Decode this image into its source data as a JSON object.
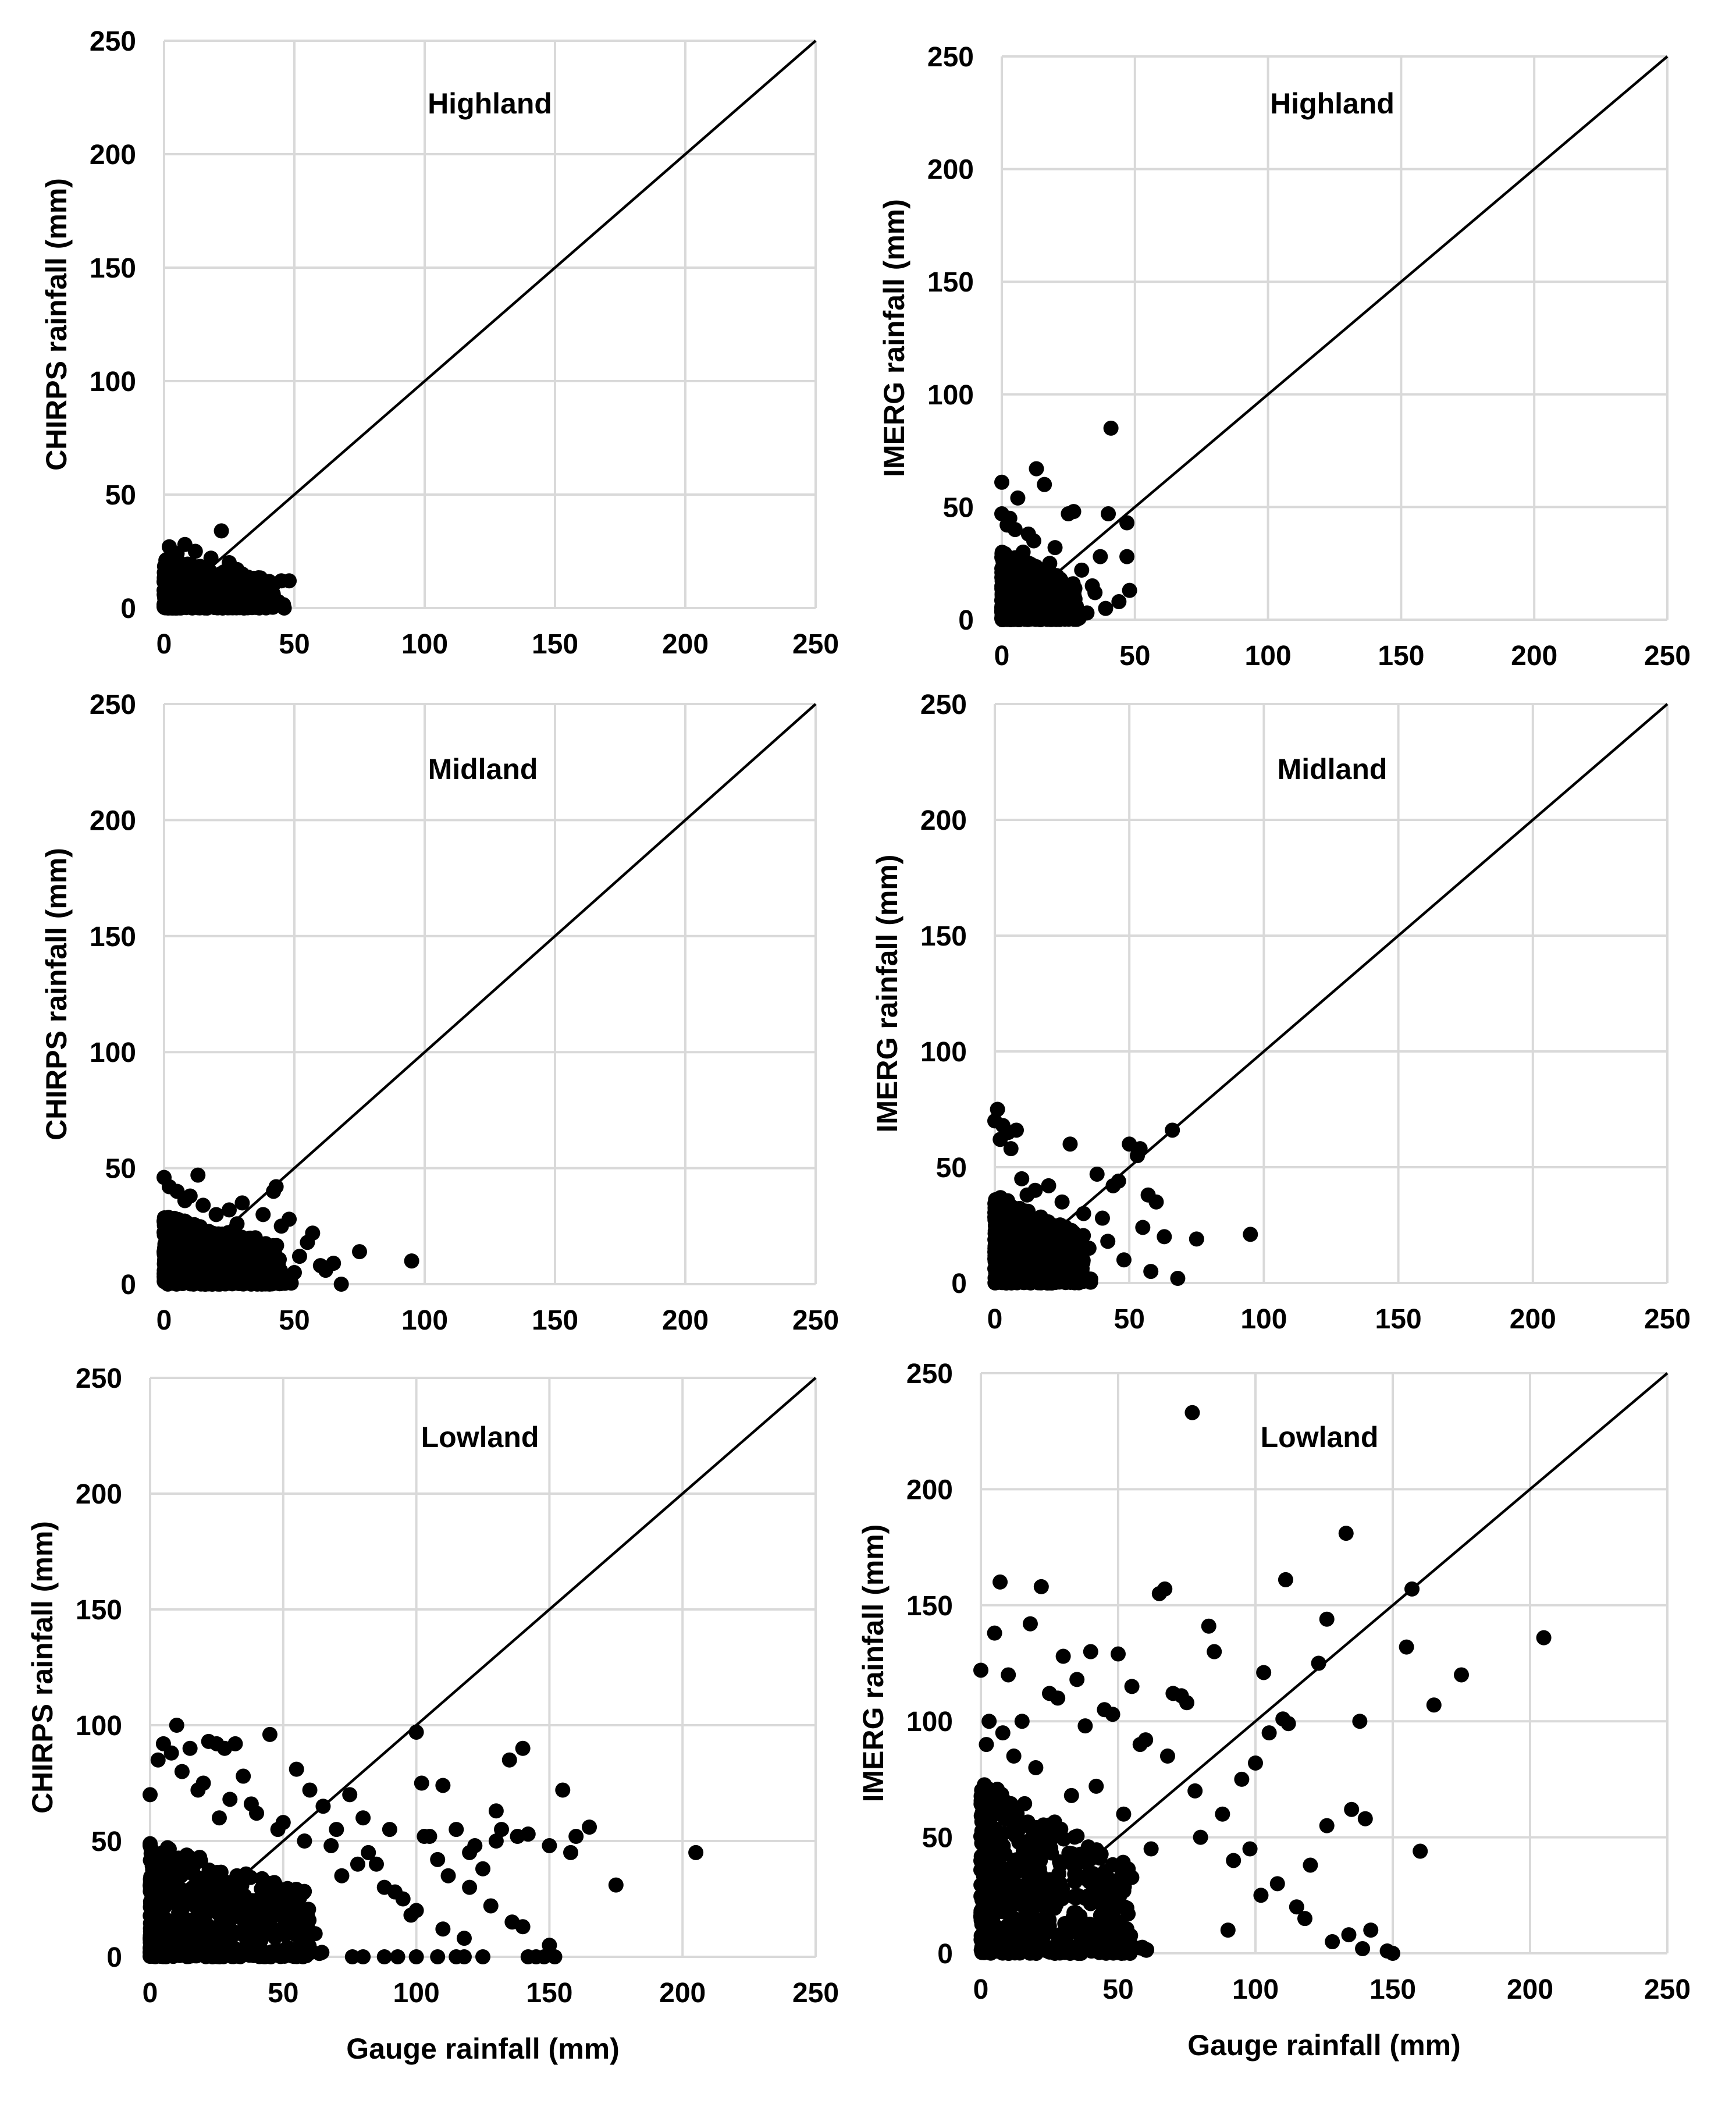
{
  "chart_data": [
    {
      "id": "chirps-highland",
      "type": "scatter",
      "title": "Highland",
      "xlabel": "",
      "ylabel": "CHIRPS rainfall (mm)",
      "xlim": [
        0,
        250
      ],
      "ylim": [
        0,
        250
      ],
      "xticks": [
        "0",
        "50",
        "100",
        "150",
        "200",
        "250"
      ],
      "yticks": [
        "0",
        "50",
        "100",
        "150",
        "200",
        "250"
      ],
      "reference_line": "1:1",
      "series": [
        {
          "name": "points",
          "x": [
            22,
            8,
            5,
            2,
            12,
            18,
            25,
            30,
            35,
            40,
            45,
            48,
            10,
            15,
            20,
            4,
            6,
            42,
            38,
            28
          ],
          "y": [
            34,
            28,
            24,
            27,
            25,
            22,
            20,
            15,
            12,
            10,
            12,
            12,
            18,
            14,
            8,
            5,
            12,
            4,
            6,
            17
          ]
        }
      ],
      "cluster": {
        "xmax": 42,
        "ymax": 22
      }
    },
    {
      "id": "imerg-highland",
      "type": "scatter",
      "title": "Highland",
      "xlabel": "",
      "ylabel": "IMERG rainfall (mm)",
      "xlim": [
        0,
        250
      ],
      "ylim": [
        0,
        250
      ],
      "xticks": [
        "0",
        "50",
        "100",
        "150",
        "200",
        "250"
      ],
      "yticks": [
        "0",
        "50",
        "100",
        "150",
        "200",
        "250"
      ],
      "reference_line": "1:1",
      "series": [
        {
          "name": "points",
          "x": [
            41,
            13,
            0,
            16,
            0,
            6,
            27,
            25,
            47,
            40,
            47,
            48,
            37,
            34,
            39,
            2,
            5,
            10,
            20,
            30,
            8,
            12,
            18,
            22,
            35,
            44,
            15,
            3,
            28,
            32
          ],
          "y": [
            85,
            67,
            61,
            60,
            47,
            54,
            48,
            47,
            43,
            47,
            28,
            13,
            28,
            15,
            5,
            42,
            40,
            38,
            32,
            22,
            30,
            35,
            25,
            18,
            12,
            8,
            20,
            45,
            6,
            3
          ]
        }
      ],
      "cluster": {
        "xmax": 28,
        "ymax": 30
      }
    },
    {
      "id": "chirps-midland",
      "type": "scatter",
      "title": "Midland",
      "xlabel": "",
      "ylabel": "CHIRPS rainfall (mm)",
      "xlim": [
        0,
        250
      ],
      "ylim": [
        0,
        250
      ],
      "xticks": [
        "0",
        "50",
        "100",
        "150",
        "200",
        "250"
      ],
      "yticks": [
        "0",
        "50",
        "100",
        "150",
        "200",
        "250"
      ],
      "reference_line": "1:1",
      "series": [
        {
          "name": "points",
          "x": [
            0,
            13,
            43,
            42,
            75,
            95,
            68,
            60,
            57,
            55,
            48,
            52,
            45,
            38,
            30,
            25,
            20,
            10,
            5,
            2,
            35,
            40,
            50,
            62,
            65,
            28,
            15,
            8
          ],
          "y": [
            46,
            47,
            42,
            40,
            14,
            10,
            0,
            8,
            22,
            18,
            28,
            12,
            25,
            30,
            35,
            32,
            30,
            38,
            40,
            42,
            20,
            15,
            5,
            6,
            9,
            26,
            34,
            36
          ]
        }
      ],
      "cluster": {
        "xmax": 45,
        "ymax": 30
      }
    },
    {
      "id": "imerg-midland",
      "type": "scatter",
      "title": "Midland",
      "xlabel": "",
      "ylabel": "IMERG rainfall (mm)",
      "xlim": [
        0,
        250
      ],
      "ylim": [
        0,
        250
      ],
      "xticks": [
        "0",
        "50",
        "100",
        "150",
        "200",
        "250"
      ],
      "yticks": [
        "0",
        "50",
        "100",
        "150",
        "200",
        "250"
      ],
      "reference_line": "1:1",
      "series": [
        {
          "name": "points",
          "x": [
            1,
            0,
            3,
            5,
            8,
            2,
            6,
            28,
            54,
            50,
            53,
            57,
            46,
            38,
            60,
            55,
            63,
            66,
            75,
            95,
            68,
            33,
            40,
            44,
            48,
            58,
            25,
            15,
            20,
            12,
            10,
            35,
            42
          ],
          "y": [
            75,
            70,
            68,
            65,
            66,
            62,
            58,
            60,
            58,
            60,
            55,
            38,
            44,
            47,
            35,
            24,
            20,
            66,
            19,
            21,
            2,
            30,
            28,
            42,
            10,
            5,
            35,
            40,
            42,
            38,
            45,
            15,
            18
          ]
        }
      ],
      "cluster": {
        "xmax": 33,
        "ymax": 38
      }
    },
    {
      "id": "chirps-lowland",
      "type": "scatter",
      "title": "Lowland",
      "xlabel": "Gauge rainfall (mm)",
      "ylabel": "CHIRPS rainfall (mm)",
      "xlim": [
        0,
        250
      ],
      "ylim": [
        0,
        250
      ],
      "xticks": [
        "0",
        "50",
        "100",
        "150",
        "200",
        "250"
      ],
      "yticks": [
        "0",
        "50",
        "100",
        "150",
        "200",
        "250"
      ],
      "reference_line": "1:1",
      "series": [
        {
          "name": "points",
          "x": [
            10,
            5,
            8,
            3,
            0,
            15,
            22,
            25,
            28,
            32,
            35,
            45,
            55,
            60,
            75,
            90,
            100,
            102,
            103,
            110,
            115,
            120,
            125,
            130,
            135,
            138,
            140,
            142,
            150,
            155,
            158,
            160,
            165,
            175,
            205,
            140,
            130,
            120,
            110,
            100,
            95,
            85,
            80,
            70,
            65,
            50,
            40,
            30,
            20,
            12,
            18,
            26,
            38,
            48,
            58,
            68,
            72,
            78,
            82,
            88,
            92,
            98,
            105,
            108,
            112,
            118,
            122,
            128,
            132,
            136,
            148,
            152,
            145,
            118,
            115,
            108,
            100,
            93,
            88,
            80,
            76,
            142,
            125,
            150,
            62,
            43,
            36,
            24,
            14
          ],
          "y": [
            100,
            92,
            88,
            85,
            70,
            90,
            93,
            92,
            90,
            92,
            78,
            96,
            81,
            72,
            70,
            55,
            97,
            75,
            52,
            74,
            55,
            30,
            38,
            63,
            85,
            52,
            90,
            53,
            48,
            72,
            45,
            52,
            56,
            31,
            45,
            13,
            50,
            45,
            12,
            20,
            25,
            40,
            60,
            55,
            65,
            58,
            62,
            68,
            75,
            80,
            72,
            60,
            66,
            55,
            50,
            48,
            35,
            40,
            45,
            30,
            28,
            18,
            52,
            42,
            35,
            8,
            48,
            22,
            55,
            15,
            0,
            0,
            0,
            0,
            0,
            0,
            0,
            0,
            0,
            0,
            0,
            0,
            0,
            5,
            10,
            20,
            15,
            30,
            25
          ]
        }
      ],
      "cluster": {
        "xmax": 60,
        "ymax": 50
      }
    },
    {
      "id": "imerg-lowland",
      "type": "scatter",
      "title": "Lowland",
      "xlabel": "Gauge rainfall (mm)",
      "ylabel": "IMERG rainfall (mm)",
      "xlim": [
        0,
        250
      ],
      "ylim": [
        0,
        250
      ],
      "xticks": [
        "0",
        "50",
        "100",
        "150",
        "200",
        "250"
      ],
      "yticks": [
        "0",
        "50",
        "100",
        "150",
        "200",
        "250"
      ],
      "reference_line": "1:1",
      "series": [
        {
          "name": "points",
          "x": [
            77,
            133,
            111,
            7,
            22,
            0,
            5,
            18,
            30,
            40,
            50,
            65,
            67,
            73,
            85,
            83,
            103,
            110,
            123,
            126,
            155,
            157,
            205,
            175,
            165,
            138,
            160,
            140,
            135,
            126,
            112,
            105,
            100,
            95,
            88,
            75,
            70,
            60,
            55,
            45,
            35,
            25,
            15,
            10,
            8,
            3,
            2,
            20,
            28,
            38,
            48,
            58,
            68,
            78,
            92,
            98,
            108,
            115,
            118,
            128,
            134,
            139,
            148,
            150,
            142,
            120,
            102,
            90,
            80,
            62,
            52,
            42,
            33,
            12
          ],
          "y": [
            233,
            181,
            161,
            160,
            158,
            122,
            138,
            142,
            128,
            130,
            129,
            155,
            157,
            111,
            130,
            141,
            121,
            101,
            125,
            144,
            132,
            157,
            136,
            120,
            107,
            100,
            44,
            58,
            62,
            55,
            99,
            95,
            82,
            75,
            60,
            108,
            112,
            92,
            115,
            105,
            118,
            112,
            100,
            120,
            95,
            100,
            90,
            80,
            110,
            98,
            103,
            90,
            85,
            70,
            40,
            45,
            30,
            20,
            15,
            5,
            8,
            2,
            1,
            0,
            10,
            38,
            25,
            10,
            50,
            45,
            60,
            72,
            68,
            85
          ]
        }
      ],
      "cluster": {
        "xmax": 55,
        "ymax": 75
      }
    }
  ]
}
